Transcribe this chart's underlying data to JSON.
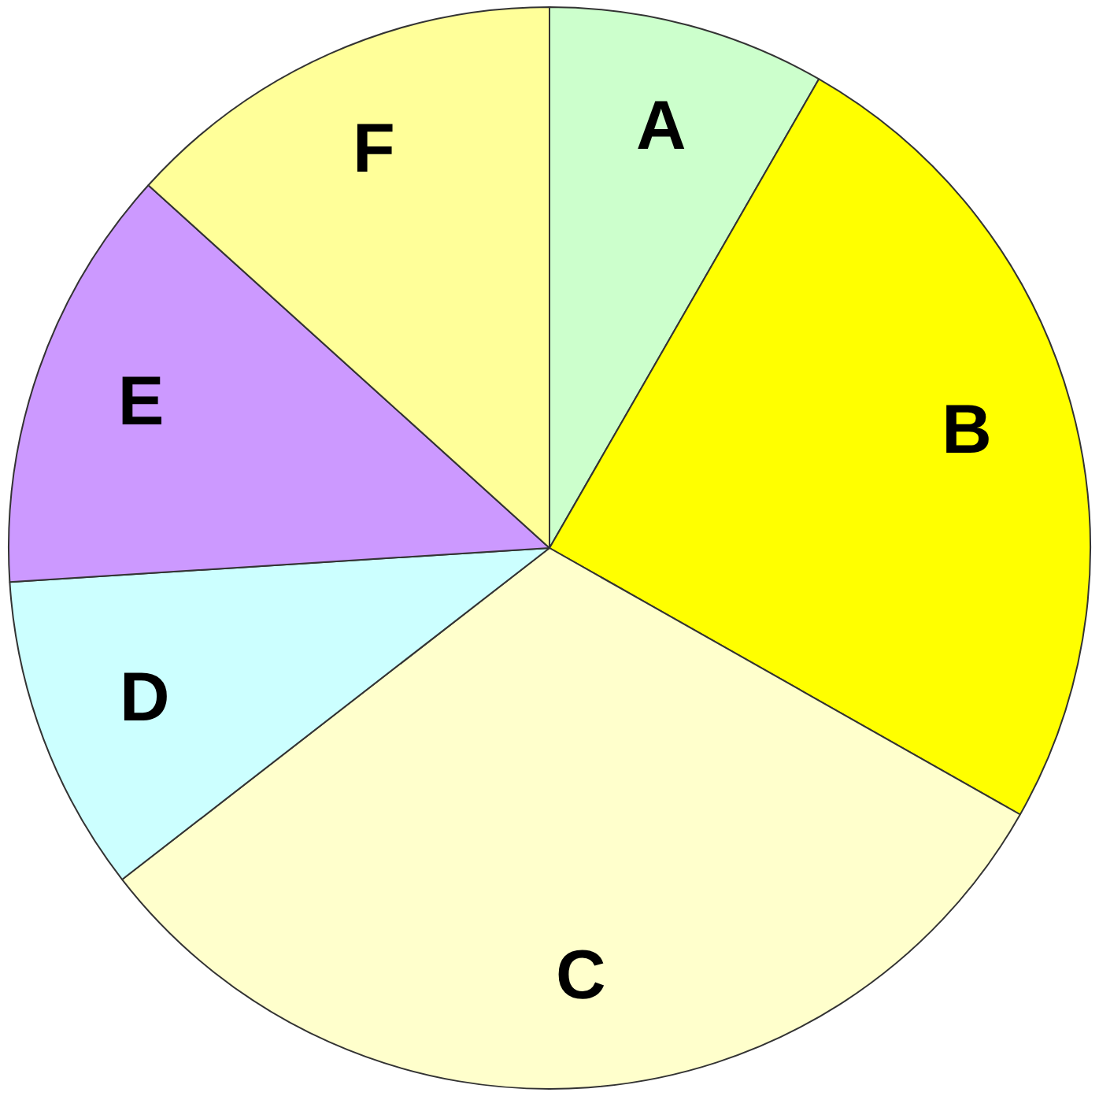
{
  "chart_data": {
    "type": "pie",
    "categories": [
      "A",
      "B",
      "C",
      "D",
      "E",
      "F"
    ],
    "values": [
      8.3,
      24.9,
      31.3,
      9.5,
      12.7,
      13.3
    ],
    "colors": [
      "#ccffcc",
      "#ffff00",
      "#ffffcc",
      "#ccffff",
      "#cc99ff",
      "#ffff99"
    ],
    "legend": false
  }
}
